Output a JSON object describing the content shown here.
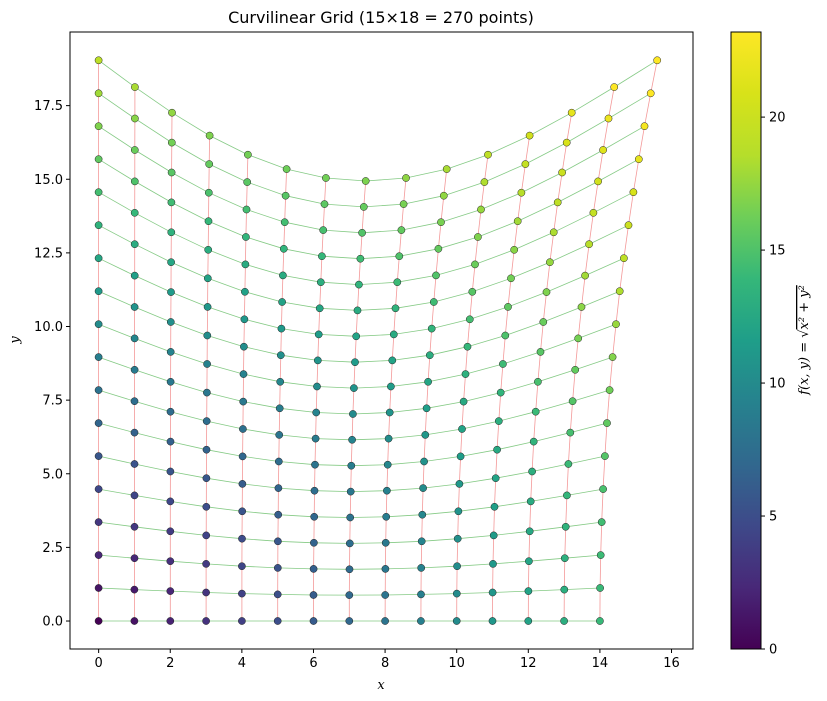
{
  "chart_data": {
    "type": "scatter",
    "title": "Curvilinear Grid (15×18 = 270 points)",
    "xlabel": "x",
    "ylabel": "y",
    "xlim": [
      -0.8,
      16.6
    ],
    "ylim": [
      -0.95,
      20.0
    ],
    "xticks": [
      0,
      2,
      4,
      6,
      8,
      10,
      12,
      14,
      16
    ],
    "yticks": [
      0.0,
      2.5,
      5.0,
      7.5,
      10.0,
      12.5,
      15.0,
      17.5
    ],
    "ytick_labels": [
      "0.0",
      "2.5",
      "5.0",
      "7.5",
      "10.0",
      "12.5",
      "15.0",
      "17.5"
    ],
    "grid": "off",
    "grid_dims": {
      "n_columns": 15,
      "n_rows": 18
    },
    "grid_generation": {
      "x_base_step": 1.0,
      "y_base_step": 1.12,
      "x_shift_amplitude": 1.6,
      "y_shift_amplitude": 4.1,
      "note": "x = i + 1.6*(j/17)^2*(i/14)^1.8 ; y = 1.12*j - 4.1*(j/17)*sin(pi*i/14)"
    },
    "colorbar": {
      "label": "f(x,y) = sqrt(x^2 + y^2)",
      "range": [
        0,
        23.2
      ],
      "ticks": [
        0,
        5,
        10,
        15,
        20
      ],
      "colormap": "viridis"
    },
    "colors": {
      "column_lines": "#f08080",
      "row_lines": "#5cb85c",
      "marker_edge": "#222222"
    }
  }
}
